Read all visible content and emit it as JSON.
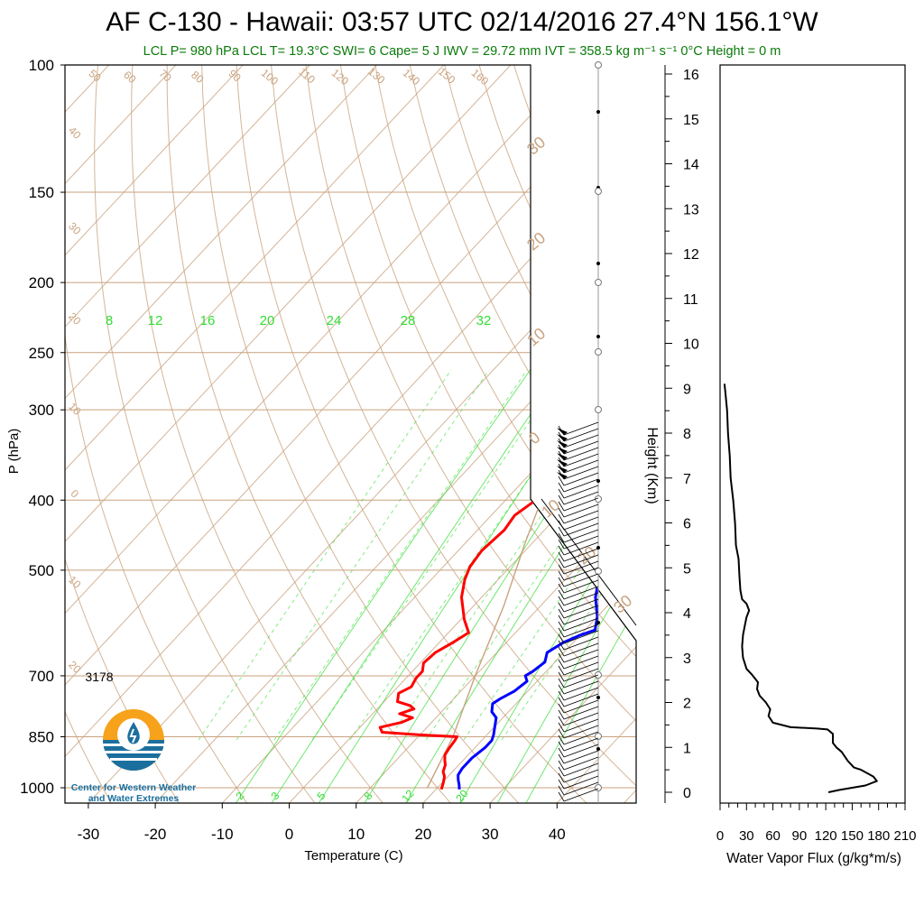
{
  "header": {
    "title": "AF C-130 - Hawaii: 03:57 UTC 02/14/2016  27.4°N 156.1°W",
    "subtitle": "LCL P= 980 hPa  LCL T= 19.3°C  SWI= 6  Cape= 5 J  IWV = 29.72 mm  IVT = 358.5 kg m⁻¹ s⁻¹  0°C Height = 0 m"
  },
  "logo": {
    "line1": "Center for Western Weather",
    "line2": "and Water Extremes"
  },
  "chart_data": [
    {
      "type": "line",
      "subtype": "skew-t log-p sounding",
      "xlabel": "Temperature (C)",
      "ylabel": "P (hPa)",
      "xlim": [
        -35,
        50
      ],
      "ylim": [
        1050,
        100
      ],
      "y_scale": "log",
      "x_ticks": [
        -30,
        -20,
        -10,
        0,
        10,
        20,
        30,
        40
      ],
      "y_ticks": [
        100,
        150,
        200,
        250,
        300,
        400,
        500,
        700,
        850,
        1000
      ],
      "right_axis": {
        "label": "Height (Km)",
        "ticks": [
          0,
          1,
          2,
          3,
          4,
          5,
          6,
          7,
          8,
          9,
          10,
          11,
          12,
          13,
          14,
          15,
          16
        ]
      },
      "annotation": "3178",
      "mixing_ratio_labels_top": [
        "8",
        "12",
        "16",
        "20",
        "24",
        "28",
        "32"
      ],
      "mixing_ratio_labels_bottom": [
        "2",
        "3",
        "5",
        "8",
        "12",
        "20"
      ],
      "dry_adiabat_labels": [
        "50",
        "60",
        "70",
        "80",
        "90",
        "100",
        "110",
        "120",
        "130",
        "140",
        "150",
        "160"
      ],
      "isotherm_labels_left": [
        "40",
        "30",
        "20",
        "10",
        "0",
        "10",
        "20"
      ],
      "isotherm_labels_right": [
        "30",
        "20",
        "10",
        "0",
        "10",
        "20",
        "30"
      ],
      "colors": {
        "temperature": "#ff0000",
        "dewpoint": "#0000ff",
        "mixing_ratio": "#33dd33",
        "background_lines": "#c9a27e",
        "parcel": "#c9a27e"
      },
      "series": [
        {
          "name": "Temperature",
          "points": [
            [
              20.8,
              1005
            ],
            [
              20.2,
              985
            ],
            [
              19.5,
              965
            ],
            [
              18.6,
              950
            ],
            [
              18,
              930
            ],
            [
              17.2,
              915
            ],
            [
              16.5,
              900
            ],
            [
              16.2,
              880
            ],
            [
              16,
              860
            ],
            [
              15.8,
              850
            ],
            [
              10,
              845
            ],
            [
              4,
              838
            ],
            [
              3,
              825
            ],
            [
              5.5,
              812
            ],
            [
              6.5,
              800
            ],
            [
              4,
              790
            ],
            [
              5.5,
              778
            ],
            [
              4.5,
              770
            ],
            [
              2,
              760
            ],
            [
              1,
              740
            ],
            [
              2,
              725
            ],
            [
              1.5,
              705
            ],
            [
              1.5,
              690
            ],
            [
              0.5,
              672
            ],
            [
              0.8,
              650
            ],
            [
              2,
              630
            ],
            [
              3,
              610
            ],
            [
              0.5,
              585
            ],
            [
              -3,
              545
            ],
            [
              -5,
              515
            ],
            [
              -6,
              495
            ],
            [
              -6.5,
              470
            ],
            [
              -6,
              440
            ],
            [
              -6.5,
              420
            ],
            [
              -5.5,
              400
            ],
            [
              -6.5,
              375
            ],
            [
              -8.5,
              350
            ],
            [
              -9,
              335
            ],
            [
              -8,
              320
            ],
            [
              -10,
              305
            ]
          ]
        },
        {
          "name": "Dewpoint",
          "points": [
            [
              23.5,
              1005
            ],
            [
              22.8,
              990
            ],
            [
              22,
              975
            ],
            [
              21.3,
              960
            ],
            [
              21,
              940
            ],
            [
              21,
              910
            ],
            [
              21.5,
              880
            ],
            [
              21.5,
              860
            ],
            [
              21,
              845
            ],
            [
              19,
              800
            ],
            [
              17.5,
              785
            ],
            [
              16.5,
              765
            ],
            [
              17,
              752
            ],
            [
              18,
              735
            ],
            [
              18.5,
              712
            ],
            [
              17.5,
              700
            ],
            [
              18,
              690
            ],
            [
              18.5,
              670
            ],
            [
              17.5,
              650
            ],
            [
              18.5,
              630
            ],
            [
              20,
              615
            ],
            [
              21.5,
              605
            ],
            [
              20,
              580
            ],
            [
              17,
              545
            ],
            [
              15,
              515
            ],
            [
              13,
              495
            ],
            [
              11.5,
              480
            ],
            [
              11,
              460
            ],
            [
              12.5,
              420
            ],
            [
              13,
              390
            ],
            [
              11.5,
              375
            ],
            [
              10.5,
              360
            ],
            [
              10.5,
              340
            ],
            [
              11,
              320
            ],
            [
              9.5,
              305
            ]
          ]
        }
      ],
      "wind_barb_column": "right of diagram, 1000–300 hPa"
    },
    {
      "type": "line",
      "xlabel": "Water Vapor Flux (g/kg*m/s)",
      "ylabel": "Height (Km)",
      "xlim": [
        0,
        210
      ],
      "ylim": [
        -0.2,
        16.4
      ],
      "x_ticks": [
        0,
        30,
        60,
        90,
        120,
        150,
        180,
        210
      ],
      "series": [
        {
          "name": "",
          "points": [
            [
              123,
              0.0
            ],
            [
              135,
              0.05
            ],
            [
              150,
              0.1
            ],
            [
              165,
              0.15
            ],
            [
              178,
              0.25
            ],
            [
              174,
              0.35
            ],
            [
              160,
              0.5
            ],
            [
              152,
              0.55
            ],
            [
              145,
              0.7
            ],
            [
              138,
              0.9
            ],
            [
              132,
              1.0
            ],
            [
              128,
              1.1
            ],
            [
              128,
              1.3
            ],
            [
              122,
              1.4
            ],
            [
              110,
              1.42
            ],
            [
              80,
              1.45
            ],
            [
              60,
              1.55
            ],
            [
              55,
              1.7
            ],
            [
              57,
              1.85
            ],
            [
              52,
              2.0
            ],
            [
              45,
              2.15
            ],
            [
              42,
              2.3
            ],
            [
              43,
              2.45
            ],
            [
              37,
              2.6
            ],
            [
              30,
              2.75
            ],
            [
              26,
              3.0
            ],
            [
              25,
              3.25
            ],
            [
              26,
              3.5
            ],
            [
              28,
              3.7
            ],
            [
              30,
              3.9
            ],
            [
              33,
              4.05
            ],
            [
              30,
              4.2
            ],
            [
              25,
              4.3
            ],
            [
              23,
              4.5
            ],
            [
              22,
              4.8
            ],
            [
              21,
              5.2
            ],
            [
              18,
              5.5
            ],
            [
              17,
              6.0
            ],
            [
              15,
              6.5
            ],
            [
              12,
              7.0
            ],
            [
              11,
              7.5
            ],
            [
              9,
              8.0
            ],
            [
              8,
              8.5
            ],
            [
              6,
              8.9
            ],
            [
              5,
              9.1
            ]
          ]
        }
      ]
    }
  ]
}
